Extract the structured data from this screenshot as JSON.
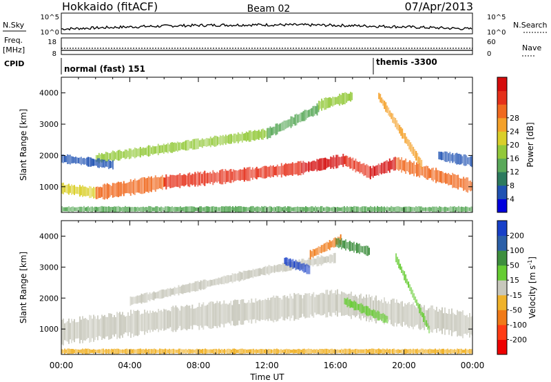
{
  "header": {
    "station": "Hokkaido (fitACF)",
    "beam": "Beam 02",
    "date": "07/Apr/2013"
  },
  "status_panels": {
    "nsky": {
      "label": "N.Sky",
      "ticks": [
        "10^5",
        "10^0"
      ]
    },
    "nsearch": {
      "label": "N.Search",
      "ticks": [
        "10^5",
        "10^0"
      ]
    },
    "freq": {
      "label_top": "Freq.",
      "label_bottom": "[MHz]",
      "ticks": [
        "18",
        "8"
      ]
    },
    "nave": {
      "label": "Nave",
      "ticks": [
        "60",
        "0"
      ]
    },
    "cpid": {
      "label": "CPID",
      "segments": [
        {
          "name": "normal (fast) 151",
          "start_ut": 0.0,
          "end_ut": 18.0
        },
        {
          "name": "themis -3300",
          "start_ut": 18.0,
          "end_ut": 24.0
        }
      ]
    }
  },
  "chart_data": [
    {
      "type": "heatmap",
      "panel": "power",
      "x": {
        "label": "Time UT",
        "range": [
          0,
          24
        ],
        "ticks": [
          "00:00",
          "04:00",
          "08:00",
          "12:00",
          "16:00",
          "20:00",
          "00:00"
        ]
      },
      "y": {
        "label": "Slant Range [km]",
        "range": [
          180,
          4500
        ],
        "ticks": [
          "1000",
          "2000",
          "3000",
          "4000"
        ]
      },
      "colorbar": {
        "label": "Power [dB]",
        "ticks": [
          "4",
          "8",
          "12",
          "16",
          "20",
          "24",
          "28"
        ],
        "colors": [
          "#0000dd",
          "#1f52b3",
          "#2c7a5e",
          "#5aa95a",
          "#93c93a",
          "#dacf2a",
          "#f4a12a",
          "#f06a20",
          "#e5301a",
          "#d40c0c"
        ]
      },
      "bands": [
        {
          "t0": 0.0,
          "t1": 2.0,
          "r0": 950,
          "r1": 800,
          "width": 300,
          "color": "#dacf2a"
        },
        {
          "t0": 2.0,
          "t1": 6.0,
          "r0": 800,
          "r1": 1150,
          "width": 420,
          "color": "#f06a20"
        },
        {
          "t0": 6.0,
          "t1": 10.0,
          "r0": 1150,
          "r1": 1350,
          "width": 380,
          "color": "#e5301a"
        },
        {
          "t0": 10.0,
          "t1": 14.0,
          "r0": 1350,
          "r1": 1600,
          "width": 360,
          "color": "#e5301a"
        },
        {
          "t0": 14.0,
          "t1": 16.5,
          "r0": 1600,
          "r1": 1850,
          "width": 340,
          "color": "#d40c0c"
        },
        {
          "t0": 16.5,
          "t1": 18.0,
          "r0": 1850,
          "r1": 1450,
          "width": 340,
          "color": "#e5301a"
        },
        {
          "t0": 18.0,
          "t1": 19.5,
          "r0": 1450,
          "r1": 1750,
          "width": 360,
          "color": "#d40c0c"
        },
        {
          "t0": 19.5,
          "t1": 24.0,
          "r0": 1750,
          "r1": 1000,
          "width": 380,
          "color": "#f06a20"
        },
        {
          "t0": 2.0,
          "t1": 12.0,
          "r0": 1900,
          "r1": 2700,
          "width": 280,
          "color": "#93c93a"
        },
        {
          "t0": 12.0,
          "t1": 15.0,
          "r0": 2700,
          "r1": 3500,
          "width": 300,
          "color": "#5aa95a"
        },
        {
          "t0": 15.0,
          "t1": 17.0,
          "r0": 3600,
          "r1": 3900,
          "width": 300,
          "color": "#93c93a"
        },
        {
          "t0": 18.5,
          "t1": 21.0,
          "r0": 3900,
          "r1": 1700,
          "width": 250,
          "color": "#f4a12a"
        },
        {
          "t0": 0.0,
          "t1": 24.0,
          "r0": 280,
          "r1": 280,
          "width": 160,
          "color": "#5aa95a"
        },
        {
          "t0": 0.0,
          "t1": 3.0,
          "r0": 1900,
          "r1": 1700,
          "width": 250,
          "color": "#1f52b3"
        },
        {
          "t0": 22.0,
          "t1": 24.0,
          "r0": 2000,
          "r1": 1800,
          "width": 300,
          "color": "#1f52b3"
        }
      ]
    },
    {
      "type": "heatmap",
      "panel": "velocity",
      "x": {
        "label": "Time UT",
        "range": [
          0,
          24
        ],
        "ticks": [
          "00:00",
          "04:00",
          "08:00",
          "12:00",
          "16:00",
          "20:00",
          "00:00"
        ]
      },
      "y": {
        "label": "Slant Range [km]",
        "range": [
          180,
          4500
        ],
        "ticks": [
          "1000",
          "2000",
          "3000",
          "4000"
        ]
      },
      "colorbar": {
        "label": "Velocity [m s-1]",
        "ticks": [
          "200",
          "100",
          "50",
          "15",
          "-15",
          "-50",
          "-100",
          "-200"
        ],
        "colors": [
          "#1840c8",
          "#2b5fa8",
          "#3e8f3e",
          "#66cc33",
          "#c8c8bc",
          "#f0b22a",
          "#f07a18",
          "#ff3b14",
          "#ee0000"
        ]
      },
      "bands": [
        {
          "t0": 0.0,
          "t1": 6.0,
          "r0": 900,
          "r1": 1300,
          "width": 700,
          "color": "#c8c8bc"
        },
        {
          "t0": 6.0,
          "t1": 16.0,
          "r0": 1300,
          "r1": 1850,
          "width": 700,
          "color": "#c8c8bc"
        },
        {
          "t0": 16.0,
          "t1": 24.0,
          "r0": 1850,
          "r1": 1100,
          "width": 700,
          "color": "#c8c8bc"
        },
        {
          "t0": 4.0,
          "t1": 12.0,
          "r0": 1900,
          "r1": 2900,
          "width": 260,
          "color": "#c8c8bc"
        },
        {
          "t0": 12.0,
          "t1": 16.0,
          "r0": 2900,
          "r1": 3300,
          "width": 260,
          "color": "#c8c8bc"
        },
        {
          "t0": 13.0,
          "t1": 14.5,
          "r0": 3200,
          "r1": 2900,
          "width": 260,
          "color": "#1840c8"
        },
        {
          "t0": 14.5,
          "t1": 16.3,
          "r0": 3400,
          "r1": 3900,
          "width": 260,
          "color": "#f07a18"
        },
        {
          "t0": 16.0,
          "t1": 18.0,
          "r0": 3800,
          "r1": 3500,
          "width": 280,
          "color": "#3e8f3e"
        },
        {
          "t0": 16.5,
          "t1": 19.0,
          "r0": 1900,
          "r1": 1300,
          "width": 260,
          "color": "#66cc33"
        },
        {
          "t0": 19.5,
          "t1": 21.5,
          "r0": 3300,
          "r1": 900,
          "width": 240,
          "color": "#66cc33"
        },
        {
          "t0": 0.0,
          "t1": 24.0,
          "r0": 280,
          "r1": 280,
          "width": 140,
          "color": "#f0b22a"
        }
      ]
    }
  ]
}
